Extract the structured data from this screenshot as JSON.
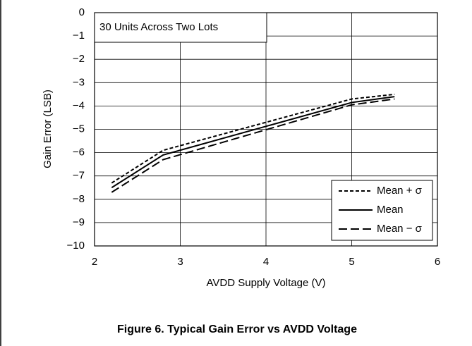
{
  "chart_data": {
    "type": "line",
    "annotation": "30 Units Across Two Lots",
    "caption": "Figure 6. Typical Gain Error vs AVDD Voltage",
    "x_label": "AVDD Supply Voltage (V)",
    "y_label": "Gain Error (LSB)",
    "x": [
      2.2,
      2.8,
      5.0,
      5.5
    ],
    "series": [
      {
        "name": "Mean + σ",
        "color": "#000000",
        "line_style": "dashed",
        "values": [
          -7.3,
          -5.9,
          -3.7,
          -3.5
        ]
      },
      {
        "name": "Mean",
        "color": "#000000",
        "line_style": "solid",
        "values": [
          -7.5,
          -6.1,
          -3.85,
          -3.6
        ]
      },
      {
        "name": "Mean − σ",
        "color": "#000000",
        "line_style": "long-dashed",
        "values": [
          -7.7,
          -6.3,
          -3.95,
          -3.7
        ]
      }
    ],
    "xlim": [
      2,
      6
    ],
    "xticks": [
      2,
      3,
      4,
      5,
      6
    ],
    "ylim": [
      -10,
      0
    ],
    "yticks": [
      {
        "value": -10,
        "label": "−10"
      },
      {
        "value": -9,
        "label": "−9"
      },
      {
        "value": -8,
        "label": "−8"
      },
      {
        "value": -7,
        "label": "−7"
      },
      {
        "value": -6,
        "label": "−6"
      },
      {
        "value": -5,
        "label": "−5"
      },
      {
        "value": -4,
        "label": "−4"
      },
      {
        "value": -3,
        "label": "−3"
      },
      {
        "value": -2,
        "label": "−2"
      },
      {
        "value": -1,
        "label": "−1"
      },
      0
    ],
    "grid": true,
    "legend": "lower right"
  }
}
